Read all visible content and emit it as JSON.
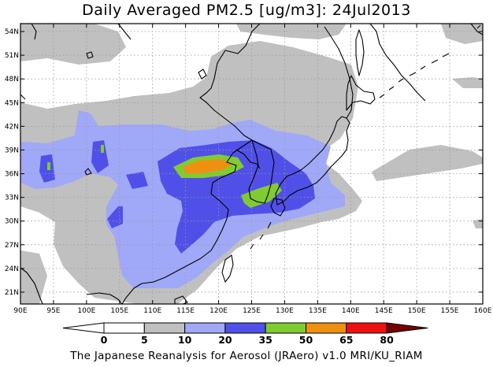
{
  "title": "Daily Averaged PM2.5 [ug/m3]: 24Jul2013",
  "footer": "The Japanese Reanalysis for Aerosol (JRAero) v1.0 MRI/KU_RIAM",
  "map": {
    "lon_range": [
      90,
      160
    ],
    "lat_range": [
      19.5,
      55
    ],
    "lon_ticks": [
      "90E",
      "95E",
      "100E",
      "105E",
      "110E",
      "115E",
      "120E",
      "125E",
      "130E",
      "135E",
      "140E",
      "145E",
      "150E",
      "155E",
      "160E"
    ],
    "lat_ticks": [
      "21N",
      "24N",
      "27N",
      "30N",
      "33N",
      "36N",
      "39N",
      "42N",
      "45N",
      "48N",
      "51N",
      "54N"
    ],
    "grid": "dotted"
  },
  "colorbar": {
    "levels": [
      "0",
      "5",
      "10",
      "20",
      "35",
      "50",
      "65",
      "80"
    ],
    "colors": [
      "#ffffff",
      "#c0c0c0",
      "#a0a8f8",
      "#5050e8",
      "#80cc30",
      "#f09010",
      "#f01010",
      "#780000"
    ]
  }
}
